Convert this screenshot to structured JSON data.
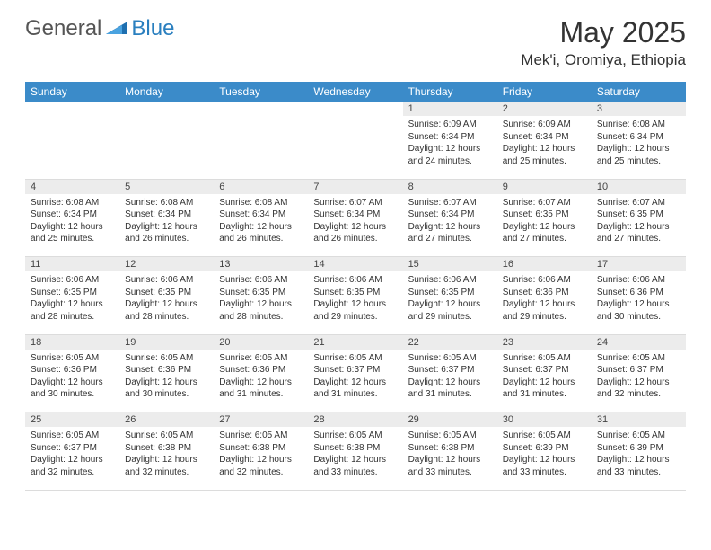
{
  "brand": {
    "part1": "General",
    "part2": "Blue"
  },
  "title": "May 2025",
  "location": "Mek'i, Oromiya, Ethiopia",
  "colors": {
    "header_bg": "#3b8bc9",
    "header_text": "#ffffff",
    "daynum_bg": "#ececec",
    "text": "#333333",
    "brand_accent": "#2a7fbf",
    "border": "#dcdcdc"
  },
  "weekdays": [
    "Sunday",
    "Monday",
    "Tuesday",
    "Wednesday",
    "Thursday",
    "Friday",
    "Saturday"
  ],
  "weeks": [
    [
      null,
      null,
      null,
      null,
      {
        "n": "1",
        "sr": "6:09 AM",
        "ss": "6:34 PM",
        "dl": "12 hours and 24 minutes."
      },
      {
        "n": "2",
        "sr": "6:09 AM",
        "ss": "6:34 PM",
        "dl": "12 hours and 25 minutes."
      },
      {
        "n": "3",
        "sr": "6:08 AM",
        "ss": "6:34 PM",
        "dl": "12 hours and 25 minutes."
      }
    ],
    [
      {
        "n": "4",
        "sr": "6:08 AM",
        "ss": "6:34 PM",
        "dl": "12 hours and 25 minutes."
      },
      {
        "n": "5",
        "sr": "6:08 AM",
        "ss": "6:34 PM",
        "dl": "12 hours and 26 minutes."
      },
      {
        "n": "6",
        "sr": "6:08 AM",
        "ss": "6:34 PM",
        "dl": "12 hours and 26 minutes."
      },
      {
        "n": "7",
        "sr": "6:07 AM",
        "ss": "6:34 PM",
        "dl": "12 hours and 26 minutes."
      },
      {
        "n": "8",
        "sr": "6:07 AM",
        "ss": "6:34 PM",
        "dl": "12 hours and 27 minutes."
      },
      {
        "n": "9",
        "sr": "6:07 AM",
        "ss": "6:35 PM",
        "dl": "12 hours and 27 minutes."
      },
      {
        "n": "10",
        "sr": "6:07 AM",
        "ss": "6:35 PM",
        "dl": "12 hours and 27 minutes."
      }
    ],
    [
      {
        "n": "11",
        "sr": "6:06 AM",
        "ss": "6:35 PM",
        "dl": "12 hours and 28 minutes."
      },
      {
        "n": "12",
        "sr": "6:06 AM",
        "ss": "6:35 PM",
        "dl": "12 hours and 28 minutes."
      },
      {
        "n": "13",
        "sr": "6:06 AM",
        "ss": "6:35 PM",
        "dl": "12 hours and 28 minutes."
      },
      {
        "n": "14",
        "sr": "6:06 AM",
        "ss": "6:35 PM",
        "dl": "12 hours and 29 minutes."
      },
      {
        "n": "15",
        "sr": "6:06 AM",
        "ss": "6:35 PM",
        "dl": "12 hours and 29 minutes."
      },
      {
        "n": "16",
        "sr": "6:06 AM",
        "ss": "6:36 PM",
        "dl": "12 hours and 29 minutes."
      },
      {
        "n": "17",
        "sr": "6:06 AM",
        "ss": "6:36 PM",
        "dl": "12 hours and 30 minutes."
      }
    ],
    [
      {
        "n": "18",
        "sr": "6:05 AM",
        "ss": "6:36 PM",
        "dl": "12 hours and 30 minutes."
      },
      {
        "n": "19",
        "sr": "6:05 AM",
        "ss": "6:36 PM",
        "dl": "12 hours and 30 minutes."
      },
      {
        "n": "20",
        "sr": "6:05 AM",
        "ss": "6:36 PM",
        "dl": "12 hours and 31 minutes."
      },
      {
        "n": "21",
        "sr": "6:05 AM",
        "ss": "6:37 PM",
        "dl": "12 hours and 31 minutes."
      },
      {
        "n": "22",
        "sr": "6:05 AM",
        "ss": "6:37 PM",
        "dl": "12 hours and 31 minutes."
      },
      {
        "n": "23",
        "sr": "6:05 AM",
        "ss": "6:37 PM",
        "dl": "12 hours and 31 minutes."
      },
      {
        "n": "24",
        "sr": "6:05 AM",
        "ss": "6:37 PM",
        "dl": "12 hours and 32 minutes."
      }
    ],
    [
      {
        "n": "25",
        "sr": "6:05 AM",
        "ss": "6:37 PM",
        "dl": "12 hours and 32 minutes."
      },
      {
        "n": "26",
        "sr": "6:05 AM",
        "ss": "6:38 PM",
        "dl": "12 hours and 32 minutes."
      },
      {
        "n": "27",
        "sr": "6:05 AM",
        "ss": "6:38 PM",
        "dl": "12 hours and 32 minutes."
      },
      {
        "n": "28",
        "sr": "6:05 AM",
        "ss": "6:38 PM",
        "dl": "12 hours and 33 minutes."
      },
      {
        "n": "29",
        "sr": "6:05 AM",
        "ss": "6:38 PM",
        "dl": "12 hours and 33 minutes."
      },
      {
        "n": "30",
        "sr": "6:05 AM",
        "ss": "6:39 PM",
        "dl": "12 hours and 33 minutes."
      },
      {
        "n": "31",
        "sr": "6:05 AM",
        "ss": "6:39 PM",
        "dl": "12 hours and 33 minutes."
      }
    ]
  ],
  "labels": {
    "sunrise": "Sunrise:",
    "sunset": "Sunset:",
    "daylight": "Daylight:"
  }
}
